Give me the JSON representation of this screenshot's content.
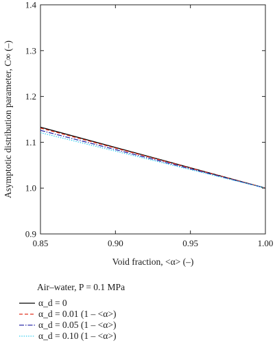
{
  "chart_data": {
    "type": "line",
    "title": "",
    "xlabel": "Void fraction, <α> (–)",
    "ylabel": "Asymptotic distribution parameter, C∞ (–)",
    "xlim": [
      0.85,
      1.0
    ],
    "ylim": [
      0.9,
      1.4
    ],
    "xticks": [
      "0.85",
      "0.90",
      "0.95",
      "1.00"
    ],
    "yticks": [
      "0.9",
      "1.0",
      "1.1",
      "1.2",
      "1.3",
      "1.4"
    ],
    "grid": false,
    "legend_title": "Air–water, P = 0.1 MPa",
    "legend_position": "below",
    "series": [
      {
        "name": "α_d = 0",
        "color": "#000000",
        "dash": "solid",
        "x": [
          0.85,
          1.0
        ],
        "y": [
          1.133,
          1.0
        ]
      },
      {
        "name": "α_d = 0.01 (1 – <α>)",
        "color": "#e0301e",
        "dash": "dashed",
        "x": [
          0.85,
          1.0
        ],
        "y": [
          1.131,
          1.0
        ]
      },
      {
        "name": "α_d = 0.05 (1 – <α>)",
        "color": "#2a2aa8",
        "dash": "dashdot",
        "x": [
          0.85,
          1.0
        ],
        "y": [
          1.126,
          1.0
        ]
      },
      {
        "name": "α_d = 0.10 (1 – <α>)",
        "color": "#33ccee",
        "dash": "dotted",
        "x": [
          0.85,
          1.0
        ],
        "y": [
          1.121,
          1.0
        ]
      }
    ]
  }
}
